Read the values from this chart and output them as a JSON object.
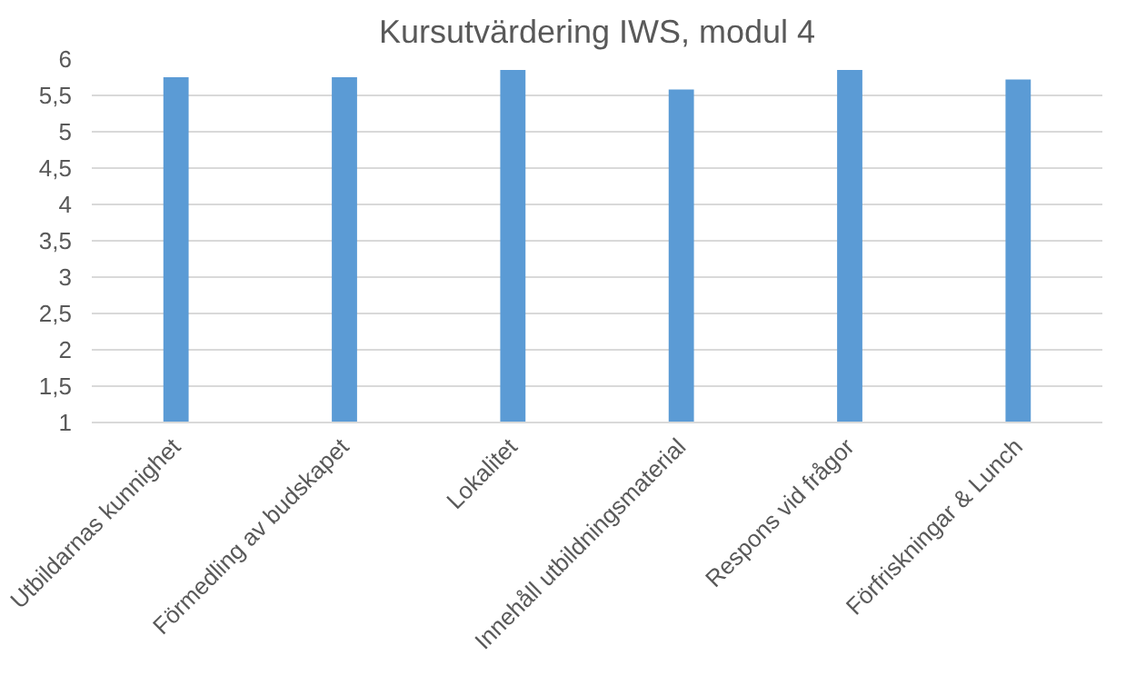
{
  "chart_data": {
    "type": "bar",
    "title": "Kursutvärdering IWS, modul 4",
    "categories": [
      "Utbildarnas kunnighet",
      "Förmedling av budskapet",
      "Lokalitet",
      "Innehåll utbildningsmaterial",
      "Respons vid frågor",
      "Förfriskningar & Lunch"
    ],
    "values": [
      5.75,
      5.75,
      5.85,
      5.58,
      5.85,
      5.72
    ],
    "color": "#5b9bd5",
    "ylim": [
      1,
      6
    ],
    "yticks": [
      1,
      {
        "value": 1.5,
        "label": "1,5"
      },
      2,
      {
        "value": 2.5,
        "label": "2,5"
      },
      3,
      {
        "value": 3.5,
        "label": "3,5"
      },
      4,
      {
        "value": 4.5,
        "label": "4,5"
      },
      5,
      {
        "value": 5.5,
        "label": "5,5"
      },
      6
    ],
    "grid": "y"
  }
}
